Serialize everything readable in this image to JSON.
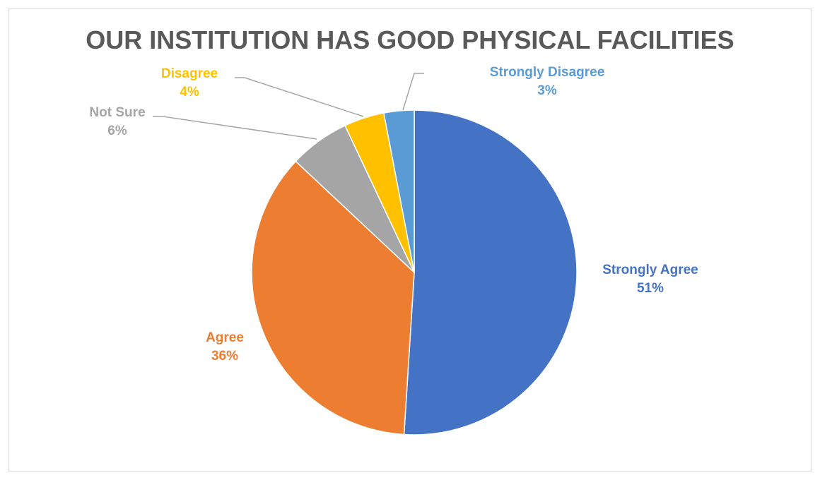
{
  "chart_data": {
    "type": "pie",
    "title": "OUR INSTITUTION HAS GOOD PHYSICAL FACILITIES",
    "slices": [
      {
        "label": "Strongly Agree",
        "value": 51,
        "display": "51%",
        "color": "#4472C4",
        "label_color": "#4472C4"
      },
      {
        "label": "Agree",
        "value": 36,
        "display": "36%",
        "color": "#ED7D31",
        "label_color": "#ED7D31"
      },
      {
        "label": "Not Sure",
        "value": 6,
        "display": "6%",
        "color": "#A5A5A5",
        "label_color": "#A5A5A5"
      },
      {
        "label": "Disagree",
        "value": 4,
        "display": "4%",
        "color": "#FFC000",
        "label_color": "#FFC000"
      },
      {
        "label": "Strongly Disagree",
        "value": 3,
        "display": "3%",
        "color": "#5B9BD5",
        "label_color": "#5B9BD5"
      }
    ],
    "start": "12 o'clock",
    "direction": "clockwise",
    "legend": "none",
    "data_labels": "category name and percentage"
  }
}
